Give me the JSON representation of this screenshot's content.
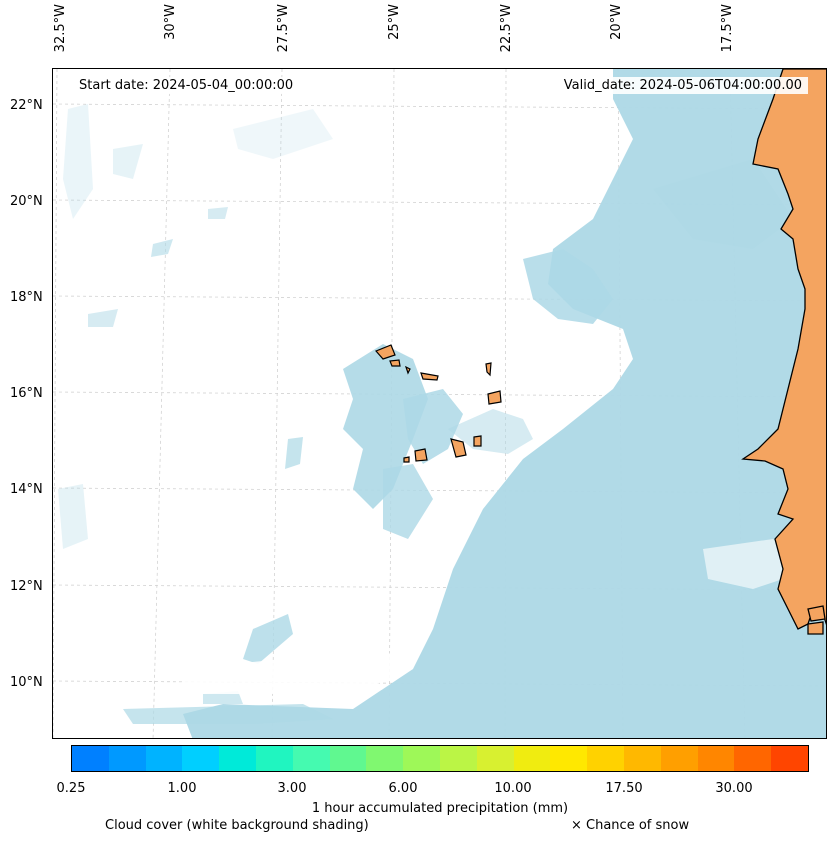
{
  "map": {
    "start_date": "Start date: 2024-05-04_00:00:00",
    "valid_date": "Valid_date: 2024-05-06T04:00:00.00",
    "longitude_labels": [
      "32.5°W",
      "30°W",
      "27.5°W",
      "25°W",
      "22.5°W",
      "20°W",
      "17.5°W"
    ],
    "latitude_labels": [
      "22°N",
      "20°N",
      "18°N",
      "16°N",
      "14°N",
      "12°N",
      "10°N"
    ],
    "land_color": "#f4a460",
    "cloud_color": "#add8e6",
    "grid": true
  },
  "legend": {
    "colorbar_colors": [
      "#0080ff",
      "#0099ff",
      "#00b3ff",
      "#00cfff",
      "#00ead9",
      "#20f5c0",
      "#45fab0",
      "#60f890",
      "#80f870",
      "#9ef858",
      "#bbf545",
      "#d8f030",
      "#f0ec10",
      "#ffe800",
      "#ffd200",
      "#ffb800",
      "#ff9f00",
      "#ff8600",
      "#ff6600",
      "#ff4500"
    ],
    "colorbar_ticks": [
      "0.25",
      "1.00",
      "3.00",
      "6.00",
      "10.00",
      "17.50",
      "30.00"
    ],
    "colorbar_label": "1 hour accumulated precipitation (mm)",
    "cloud_note": "Cloud cover (white background shading)",
    "snow_note": "× Chance of snow"
  }
}
